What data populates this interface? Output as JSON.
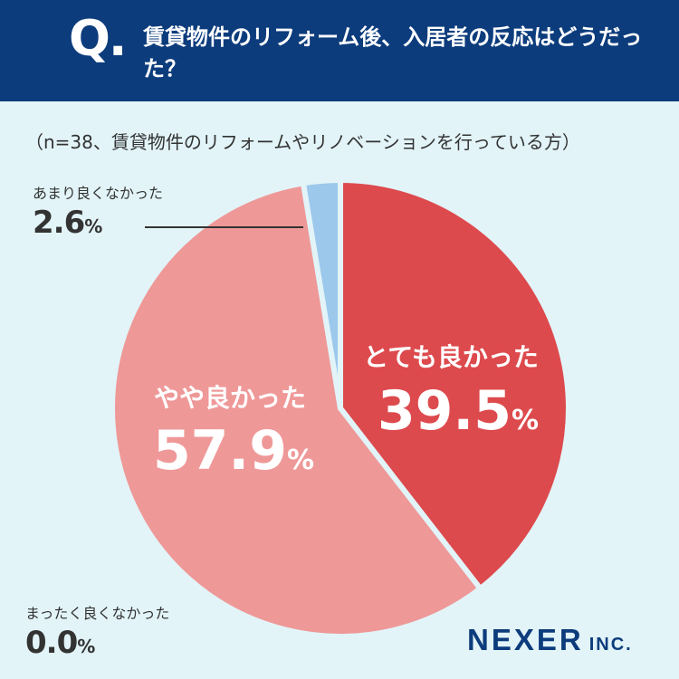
{
  "header": {
    "q_mark": "Q.",
    "question": "賃貸物件のリフォーム後、入居者の反応はどうだった？"
  },
  "note": "（n=38、賃貸物件のリフォームやリノベーションを行っている方）",
  "chart_data": {
    "type": "pie",
    "title": "賃貸物件のリフォーム後、入居者の反応はどうだった？",
    "n": 38,
    "percent_sign": "%",
    "slices": [
      {
        "label": "とても良かった",
        "value": 39.5,
        "display": "39.5",
        "color": "#dd4a4d"
      },
      {
        "label": "やや良かった",
        "value": 57.9,
        "display": "57.9",
        "color": "#ef9898"
      },
      {
        "label": "あまり良くなかった",
        "value": 2.6,
        "display": "2.6",
        "color": "#9cc8ec"
      },
      {
        "label": "まったく良くなかった",
        "value": 0.0,
        "display": "0.0",
        "color": "#cccccc"
      }
    ]
  },
  "logo": {
    "main": "NEXER",
    "suffix": "INC."
  }
}
